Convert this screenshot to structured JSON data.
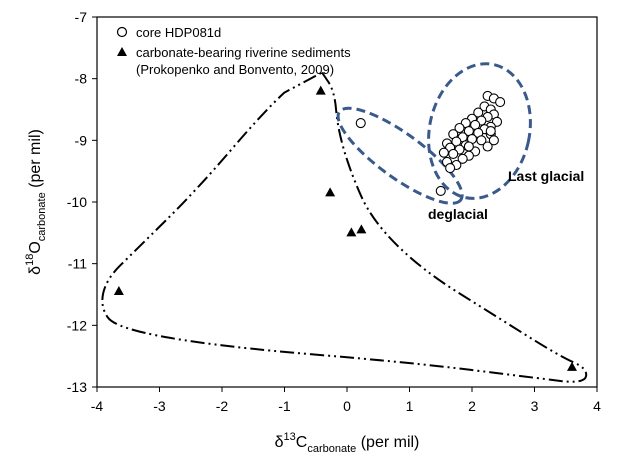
{
  "chart_data": {
    "type": "scatter",
    "xlabel": {
      "delta": "δ",
      "sup": "13",
      "element": "C",
      "sub": "carbonate",
      "unit": " (per mil)"
    },
    "ylabel": {
      "delta": "δ",
      "sup": "18",
      "element": "O",
      "sub": "carbonate",
      "unit": " (per mil)"
    },
    "xlim": [
      -4,
      4
    ],
    "ylim": [
      -13,
      -7
    ],
    "x_ticks": [
      -4,
      -3,
      -2,
      -1,
      0,
      1,
      2,
      3,
      4
    ],
    "y_ticks": [
      -7,
      -8,
      -9,
      -10,
      -11,
      -12,
      -13
    ],
    "grid": false,
    "legend_position": "top-left",
    "series": [
      {
        "name": "core HDP081d",
        "marker": "open-circle",
        "points": [
          [
            0.22,
            -8.72
          ],
          [
            1.5,
            -9.82
          ],
          [
            2.25,
            -8.28
          ],
          [
            2.35,
            -8.32
          ],
          [
            2.45,
            -8.38
          ],
          [
            2.2,
            -8.45
          ],
          [
            2.3,
            -8.5
          ],
          [
            2.1,
            -8.55
          ],
          [
            2.35,
            -8.58
          ],
          [
            2.25,
            -8.62
          ],
          [
            2.0,
            -8.65
          ],
          [
            2.15,
            -8.68
          ],
          [
            2.4,
            -8.7
          ],
          [
            1.9,
            -8.72
          ],
          [
            2.05,
            -8.75
          ],
          [
            2.3,
            -8.78
          ],
          [
            1.8,
            -8.8
          ],
          [
            2.2,
            -8.82
          ],
          [
            1.95,
            -8.85
          ],
          [
            2.1,
            -8.88
          ],
          [
            1.7,
            -8.9
          ],
          [
            2.3,
            -8.9
          ],
          [
            1.85,
            -8.95
          ],
          [
            2.0,
            -8.98
          ],
          [
            2.15,
            -9.0
          ],
          [
            1.75,
            -9.02
          ],
          [
            1.6,
            -9.05
          ],
          [
            1.9,
            -9.08
          ],
          [
            2.25,
            -9.1
          ],
          [
            1.65,
            -9.12
          ],
          [
            1.8,
            -9.15
          ],
          [
            2.05,
            -9.18
          ],
          [
            1.55,
            -9.2
          ],
          [
            1.7,
            -9.22
          ],
          [
            1.95,
            -9.25
          ],
          [
            1.85,
            -9.3
          ],
          [
            1.6,
            -9.35
          ],
          [
            1.75,
            -9.4
          ],
          [
            1.65,
            -9.45
          ],
          [
            2.3,
            -8.85
          ],
          [
            2.35,
            -9.0
          ],
          [
            1.95,
            -9.1
          ]
        ]
      },
      {
        "name": "carbonate-bearing riverine sediments",
        "name_line2": "(Prokopenko and Bonvento, 2009)",
        "marker": "filled-triangle",
        "points": [
          [
            -0.42,
            -8.2
          ],
          [
            -0.27,
            -9.85
          ],
          [
            0.23,
            -10.45
          ],
          [
            0.07,
            -10.5
          ],
          [
            -3.65,
            -11.45
          ],
          [
            3.6,
            -12.68
          ]
        ]
      }
    ],
    "annotations": [
      {
        "text": "Last glacial"
      },
      {
        "text": "deglacial"
      }
    ],
    "enclosures": [
      {
        "style": "dash-dot-dot",
        "color": "#000000"
      },
      {
        "style": "dashed",
        "color": "#3a5a8c"
      },
      {
        "style": "dashed",
        "color": "#3a5a8c"
      }
    ]
  }
}
